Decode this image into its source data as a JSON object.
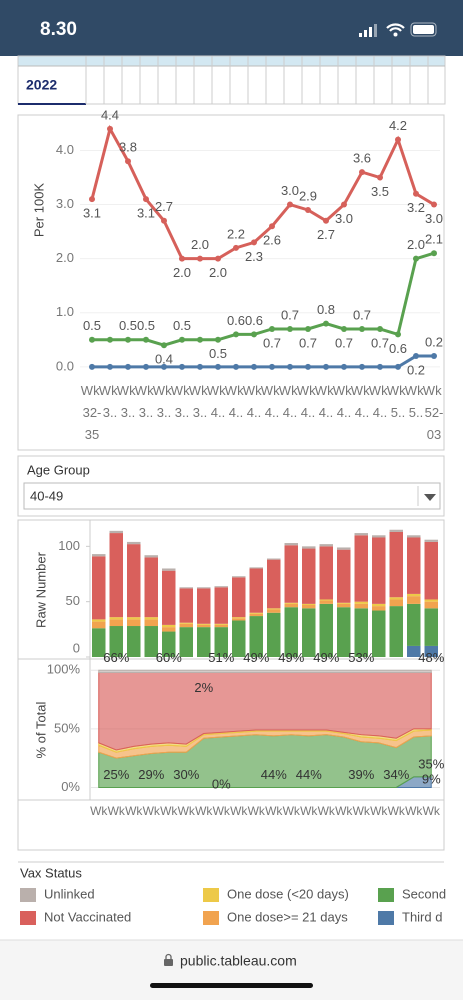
{
  "status_bar": {
    "time": "8.30"
  },
  "table": {
    "year": "2022"
  },
  "filter": {
    "label": "Age Group",
    "value": "40-49"
  },
  "legend_title": "Vax Status",
  "url": "public.tableau.com",
  "chart_data": [
    {
      "type": "line",
      "y_label": "Per 100K",
      "categories": [
        "Wk 32-35",
        "Wk 3..",
        "Wk 3..",
        "Wk 3..",
        "Wk 3..",
        "Wk 3..",
        "Wk 3..",
        "Wk 4..",
        "Wk 4..",
        "Wk 4..",
        "Wk 4..",
        "Wk 4..",
        "Wk 4..",
        "Wk 4..",
        "Wk 4..",
        "Wk 4..",
        "Wk 4..",
        "Wk 5..",
        "Wk 5..",
        "Wk 52-03"
      ],
      "ylim": [
        -0.28,
        4.6
      ],
      "yticks": [
        {
          "value": 0,
          "label": "0.0"
        },
        {
          "value": 1,
          "label": "1.0"
        },
        {
          "value": 2,
          "label": "2.0"
        },
        {
          "value": 3,
          "label": "3.0"
        },
        {
          "value": 4,
          "label": "4.0"
        }
      ],
      "grid": true,
      "series": [
        {
          "color": "#4e79a7",
          "values": [
            0,
            0,
            0,
            0,
            0,
            0,
            0,
            0,
            0,
            0,
            0,
            0,
            0,
            0,
            0,
            0,
            0,
            0,
            0.2,
            0.2
          ],
          "value_labels": [
            null,
            null,
            null,
            null,
            null,
            null,
            null,
            null,
            null,
            null,
            null,
            null,
            null,
            null,
            null,
            null,
            null,
            null,
            "0.2",
            "0.2"
          ]
        },
        {
          "color": "#59a14f",
          "values": [
            0.5,
            0.5,
            0.5,
            0.5,
            0.4,
            0.5,
            0.5,
            0.5,
            0.6,
            0.6,
            0.7,
            0.7,
            0.7,
            0.8,
            0.7,
            0.7,
            0.7,
            0.6,
            2.0,
            2.1
          ],
          "value_labels": [
            "0.5",
            null,
            "0.5",
            "0.5",
            "0.4",
            "0.5",
            null,
            "0.5",
            "0.6",
            "0.6",
            "0.7",
            "0.7",
            "0.7",
            "0.8",
            "0.7",
            "0.7",
            "0.7",
            "0.6",
            "2.0",
            "2.1"
          ]
        },
        {
          "color": "#d6605a",
          "values": [
            3.1,
            4.4,
            3.8,
            3.1,
            2.7,
            2.0,
            2.0,
            2.0,
            2.2,
            2.3,
            2.6,
            3.0,
            2.9,
            2.7,
            3.0,
            3.6,
            3.5,
            4.2,
            3.2,
            3.0
          ],
          "value_labels": [
            "3.1",
            "4.4",
            "3.8",
            "3.1",
            "2.7",
            "2.0",
            "2.0",
            "2.0",
            "2.2",
            "2.3",
            "2.6",
            "3.0",
            "2.9",
            "2.7",
            "3.0",
            "3.6",
            "3.5",
            "4.2",
            "3.2",
            "3.0"
          ]
        }
      ]
    },
    {
      "type": "stacked_bar",
      "y_label": "Raw Number",
      "ylim": [
        0,
        122
      ],
      "yticks": [
        0,
        50,
        100
      ],
      "series": [
        {
          "name": "Third d",
          "color": "#4e79a7",
          "values": [
            0,
            0,
            0,
            0,
            0,
            0,
            0,
            0,
            0,
            0,
            0,
            0,
            0,
            0,
            0,
            0,
            0,
            0,
            10,
            10
          ]
        },
        {
          "name": "Second",
          "color": "#59a14f",
          "values": [
            26,
            28,
            28,
            28,
            23,
            27,
            27,
            27,
            33,
            37,
            40,
            45,
            44,
            48,
            45,
            44,
            42,
            46,
            38,
            34
          ]
        },
        {
          "name": "One dose>= 21 days",
          "color": "#f1a34f",
          "values": [
            6,
            6,
            6,
            6,
            4,
            3,
            2,
            2,
            2,
            2,
            3,
            3,
            3,
            3,
            3,
            4,
            4,
            6,
            7,
            6
          ]
        },
        {
          "name": "One dose (<20 days)",
          "color": "#edc948",
          "values": [
            2,
            2,
            2,
            2,
            2,
            1,
            1,
            1,
            1,
            1,
            1,
            1,
            1,
            1,
            1,
            2,
            2,
            2,
            2,
            2
          ]
        },
        {
          "name": "Not Vaccinated",
          "color": "#d9605c",
          "values": [
            57,
            76,
            66,
            54,
            49,
            31,
            32,
            33,
            36,
            40,
            44,
            52,
            50,
            48,
            48,
            60,
            60,
            59,
            51,
            52
          ]
        },
        {
          "name": "Unlinked",
          "color": "#bab0ac",
          "values": [
            2,
            2,
            2,
            2,
            2,
            1,
            1,
            1,
            1,
            1,
            1,
            2,
            2,
            2,
            2,
            2,
            2,
            2,
            2,
            2
          ]
        }
      ]
    },
    {
      "type": "stacked_area",
      "y_label": "% of Total",
      "categories": [
        "Wk",
        "Wk",
        "Wk",
        "Wk",
        "Wk",
        "Wk",
        "Wk",
        "Wk",
        "Wk",
        "Wk",
        "Wk",
        "Wk",
        "Wk",
        "Wk",
        "Wk",
        "Wk",
        "Wk",
        "Wk",
        "Wk",
        "Wk"
      ],
      "ylim": [
        -9,
        107
      ],
      "yticks": [
        {
          "value": 0,
          "label": "0%"
        },
        {
          "value": 50,
          "label": "50%"
        },
        {
          "value": 100,
          "label": "100%"
        }
      ],
      "series": [
        {
          "color": "#4e79a7",
          "values": [
            0,
            0,
            0,
            0,
            0,
            0,
            0,
            0,
            0,
            0,
            0,
            0,
            0,
            0,
            0,
            0,
            0,
            0,
            9,
            9
          ],
          "value_labels": [
            null,
            null,
            null,
            null,
            null,
            null,
            null,
            "0%",
            null,
            null,
            null,
            null,
            null,
            null,
            null,
            null,
            null,
            null,
            null,
            "9%"
          ]
        },
        {
          "color": "#59a14f",
          "values": [
            30,
            25,
            27,
            29,
            30,
            30,
            42,
            43,
            44,
            45,
            44,
            45,
            44,
            45,
            43,
            39,
            38,
            34,
            34,
            35
          ],
          "value_labels": [
            null,
            "25%",
            null,
            "29%",
            null,
            "30%",
            null,
            null,
            null,
            null,
            "44%",
            null,
            "44%",
            null,
            null,
            "39%",
            null,
            "34%",
            null,
            "35%"
          ]
        },
        {
          "color": "#f1a34f",
          "values": [
            6,
            5,
            6,
            6,
            6,
            5,
            3,
            3,
            3,
            3,
            4,
            3,
            4,
            3,
            3,
            4,
            4,
            6,
            5,
            5
          ],
          "value_labels": [
            null,
            null,
            null,
            null,
            null,
            null,
            null,
            null,
            null,
            null,
            null,
            null,
            null,
            null,
            null,
            null,
            null,
            null,
            null,
            null
          ]
        },
        {
          "color": "#edc948",
          "values": [
            2,
            2,
            2,
            2,
            2,
            2,
            1,
            1,
            1,
            1,
            1,
            1,
            1,
            1,
            1,
            2,
            2,
            2,
            2,
            1
          ],
          "value_labels": [
            null,
            null,
            null,
            null,
            null,
            null,
            null,
            null,
            null,
            null,
            null,
            null,
            null,
            null,
            null,
            null,
            null,
            null,
            null,
            null
          ]
        },
        {
          "color": "#d9605c",
          "values": [
            60,
            66,
            63,
            61,
            60,
            61,
            52,
            51,
            50,
            49,
            49,
            49,
            49,
            49,
            51,
            53,
            54,
            56,
            48,
            48
          ],
          "value_labels": [
            null,
            "66%",
            null,
            null,
            "60%",
            null,
            null,
            "51%",
            null,
            "49%",
            null,
            "49%",
            null,
            "49%",
            null,
            "53%",
            null,
            null,
            null,
            "48%"
          ]
        },
        {
          "color": "#bab0ac",
          "values": [
            2,
            2,
            2,
            2,
            2,
            2,
            2,
            2,
            2,
            2,
            2,
            2,
            2,
            2,
            2,
            2,
            2,
            2,
            2,
            2
          ],
          "value_labels": [
            null,
            null,
            null,
            null,
            null,
            null,
            "2%",
            null,
            null,
            null,
            null,
            null,
            null,
            null,
            null,
            null,
            null,
            null,
            null,
            null
          ]
        }
      ]
    }
  ]
}
